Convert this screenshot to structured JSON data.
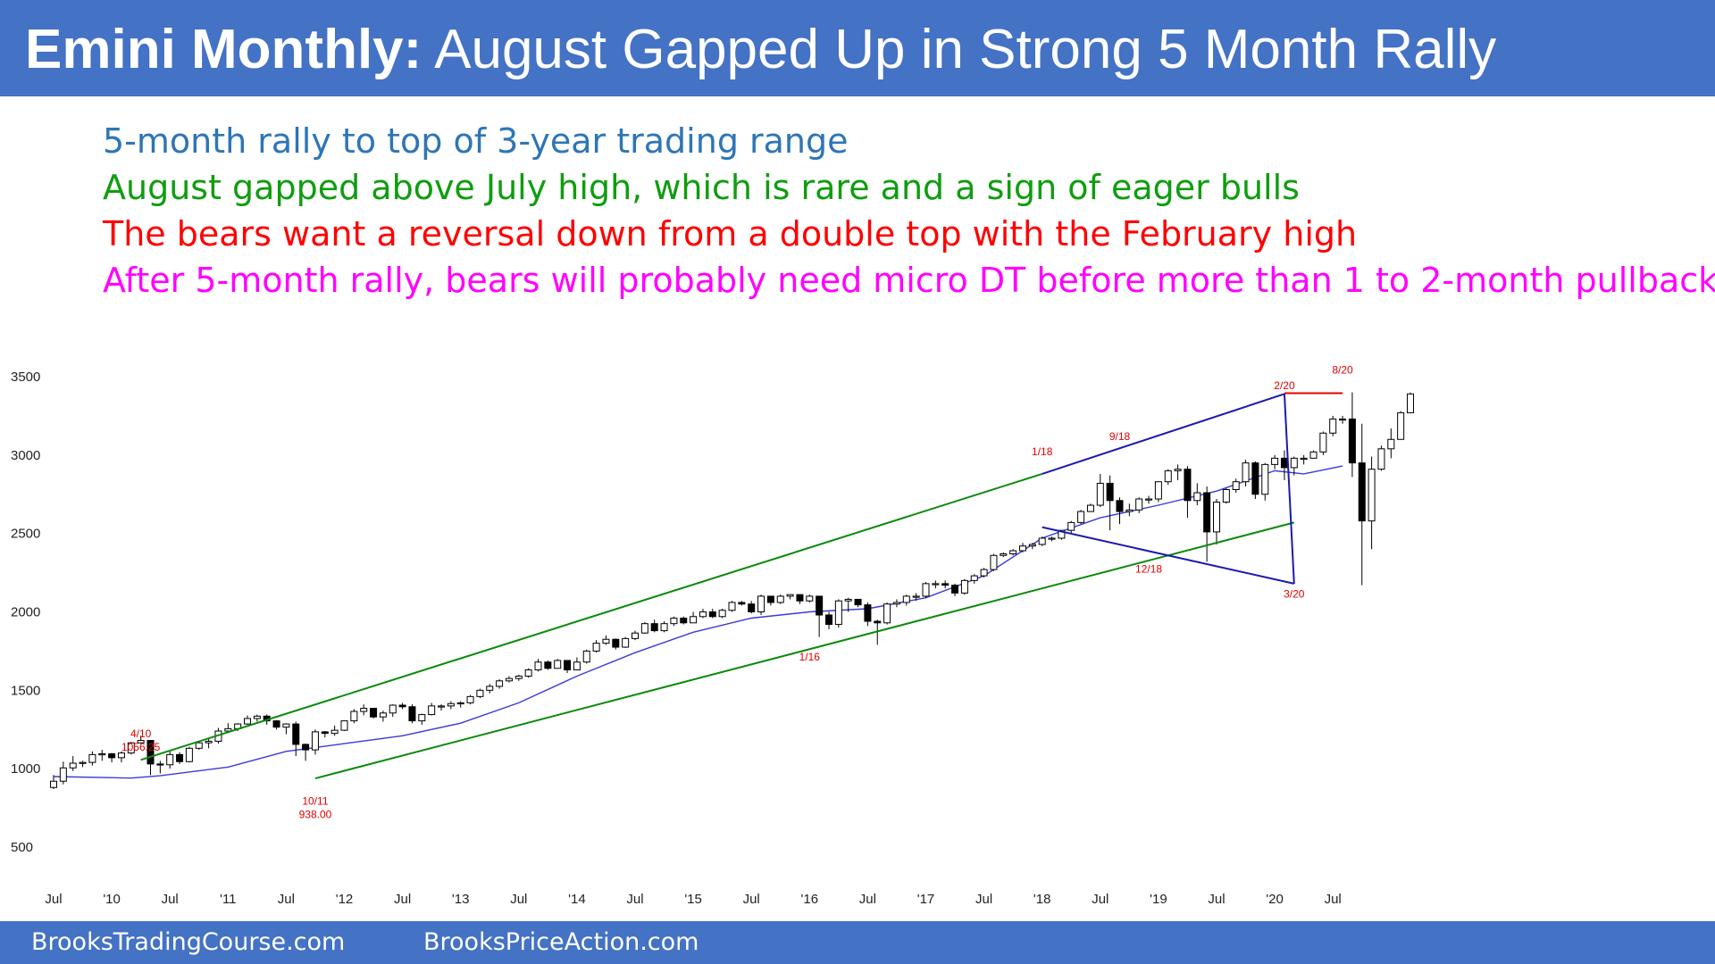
{
  "header": {
    "title_bold": "Emini Monthly:",
    "title_rest": "August Gapped Up in Strong 5 Month Rally"
  },
  "bullets": [
    {
      "text": "5-month rally to top of 3-year trading range",
      "color": "#2e75b6"
    },
    {
      "text": "August gapped above July high, which is rare and a sign of eager bulls",
      "color": "#0f9d0f"
    },
    {
      "text": "The bears want a reversal down from a double top with the February high",
      "color": "#ff0000"
    },
    {
      "text": "After 5-month rally, bears will probably need micro DT before more than 1 to 2-month pullback",
      "color": "#ff00ff"
    }
  ],
  "footer": {
    "left": "BrooksTradingCourse.com",
    "right": "BrooksPriceAction.com"
  },
  "colors": {
    "header_bg": "#4472c4",
    "bull_candle": "#ffffff",
    "bear_candle": "#000000",
    "moving_average": "#3a3ad8",
    "channel_green": "#0a8a0a",
    "triangle_blue": "#1a1ab0",
    "resistance_red": "#e00000",
    "annotation_red": "#e00000"
  },
  "chart_data": {
    "type": "candlestick",
    "instrument": "Emini",
    "timeframe": "Monthly",
    "start": "2009-07",
    "ylim": [
      500,
      3500
    ],
    "y_ticks": [
      3500,
      3000,
      2500,
      2000,
      1500,
      1000,
      500
    ],
    "x_ticks": [
      {
        "label": "Jul",
        "date": "2009-07"
      },
      {
        "label": "'10",
        "date": "2010-01"
      },
      {
        "label": "Jul",
        "date": "2010-07"
      },
      {
        "label": "'11",
        "date": "2011-01"
      },
      {
        "label": "Jul",
        "date": "2011-07"
      },
      {
        "label": "'12",
        "date": "2012-01"
      },
      {
        "label": "Jul",
        "date": "2012-07"
      },
      {
        "label": "'13",
        "date": "2013-01"
      },
      {
        "label": "Jul",
        "date": "2013-07"
      },
      {
        "label": "'14",
        "date": "2014-01"
      },
      {
        "label": "Jul",
        "date": "2014-07"
      },
      {
        "label": "'15",
        "date": "2015-01"
      },
      {
        "label": "Jul",
        "date": "2015-07"
      },
      {
        "label": "'16",
        "date": "2016-01"
      },
      {
        "label": "Jul",
        "date": "2016-07"
      },
      {
        "label": "'17",
        "date": "2017-01"
      },
      {
        "label": "Jul",
        "date": "2017-07"
      },
      {
        "label": "'18",
        "date": "2018-01"
      },
      {
        "label": "Jul",
        "date": "2018-07"
      },
      {
        "label": "'19",
        "date": "2019-01"
      },
      {
        "label": "Jul",
        "date": "2019-07"
      },
      {
        "label": "'20",
        "date": "2020-01"
      },
      {
        "label": "Jul",
        "date": "2020-07"
      }
    ],
    "closes": [
      920,
      1005,
      1035,
      1040,
      1090,
      1095,
      1070,
      1100,
      1165,
      1180,
      1030,
      1025,
      1090,
      1045,
      1130,
      1165,
      1175,
      1240,
      1255,
      1285,
      1320,
      1335,
      1305,
      1265,
      1285,
      1155,
      1120,
      1235,
      1225,
      1245,
      1305,
      1365,
      1385,
      1330,
      1355,
      1405,
      1395,
      1305,
      1345,
      1400,
      1400,
      1415,
      1420,
      1460,
      1500,
      1525,
      1560,
      1575,
      1590,
      1630,
      1680,
      1640,
      1690,
      1630,
      1680,
      1750,
      1800,
      1825,
      1775,
      1830,
      1865,
      1925,
      1880,
      1925,
      1960,
      1930,
      1970,
      2000,
      1970,
      2010,
      2060,
      2050,
      2000,
      2100,
      2060,
      2100,
      2110,
      2070,
      2100,
      1980,
      1920,
      2070,
      2080,
      2045,
      1940,
      1930,
      2050,
      2060,
      2100,
      2100,
      2180,
      2180,
      2170,
      2120,
      2200,
      2230,
      2270,
      2360,
      2370,
      2390,
      2420,
      2430,
      2470,
      2470,
      2520,
      2570,
      2640,
      2680,
      2820,
      2710,
      2640,
      2650,
      2720,
      2720,
      2830,
      2900,
      2910,
      2710,
      2760,
      2510,
      2700,
      2780,
      2830,
      2950,
      2750,
      2940,
      2980,
      2920,
      2980,
      2980,
      3020,
      3140,
      3230,
      3230,
      2950,
      2580,
      2910,
      3040,
      3100,
      3270,
      3390
    ],
    "highs": [
      960,
      1045,
      1080,
      1050,
      1110,
      1120,
      1100,
      1110,
      1170,
      1210,
      1100,
      1050,
      1110,
      1105,
      1140,
      1170,
      1190,
      1260,
      1290,
      1290,
      1340,
      1345,
      1345,
      1310,
      1290,
      1300,
      1160,
      1250,
      1240,
      1275,
      1305,
      1380,
      1410,
      1380,
      1370,
      1410,
      1420,
      1410,
      1350,
      1420,
      1410,
      1430,
      1430,
      1470,
      1510,
      1540,
      1570,
      1590,
      1600,
      1640,
      1700,
      1690,
      1700,
      1690,
      1710,
      1760,
      1820,
      1850,
      1830,
      1840,
      1880,
      1935,
      1950,
      1940,
      1970,
      1970,
      2000,
      2020,
      2020,
      2020,
      2070,
      2070,
      2070,
      2110,
      2100,
      2110,
      2110,
      2110,
      2110,
      2100,
      2000,
      2080,
      2090,
      2080,
      2060,
      1950,
      2060,
      2080,
      2110,
      2120,
      2190,
      2200,
      2200,
      2180,
      2210,
      2240,
      2280,
      2370,
      2380,
      2400,
      2440,
      2440,
      2480,
      2480,
      2520,
      2580,
      2650,
      2690,
      2880,
      2870,
      2730,
      2690,
      2730,
      2740,
      2830,
      2910,
      2940,
      2930,
      2820,
      2800,
      2720,
      2790,
      2850,
      2970,
      2960,
      2950,
      3000,
      3030,
      2990,
      3000,
      3030,
      3150,
      3250,
      3250,
      3400,
      3200,
      2990,
      3060,
      3170,
      3280,
      3400
    ],
    "lows": [
      870,
      900,
      985,
      1010,
      1020,
      1050,
      1040,
      1040,
      1090,
      1160,
      960,
      970,
      1000,
      1030,
      1040,
      1120,
      1130,
      1160,
      1240,
      1240,
      1280,
      1300,
      1280,
      1250,
      1220,
      1080,
      1050,
      1090,
      1200,
      1210,
      1240,
      1290,
      1340,
      1320,
      1300,
      1330,
      1380,
      1290,
      1280,
      1340,
      1370,
      1380,
      1390,
      1410,
      1450,
      1480,
      1510,
      1550,
      1560,
      1580,
      1620,
      1630,
      1640,
      1610,
      1630,
      1670,
      1740,
      1790,
      1760,
      1770,
      1820,
      1860,
      1870,
      1870,
      1910,
      1920,
      1930,
      1960,
      1960,
      1960,
      2000,
      2040,
      1990,
      1980,
      2040,
      2050,
      2080,
      2050,
      2060,
      1840,
      1890,
      1900,
      2000,
      2030,
      1910,
      1790,
      1920,
      2030,
      2040,
      2070,
      2090,
      2150,
      2150,
      2100,
      2110,
      2180,
      2220,
      2260,
      2350,
      2360,
      2380,
      2400,
      2420,
      2450,
      2460,
      2500,
      2560,
      2640,
      2670,
      2520,
      2560,
      2610,
      2630,
      2690,
      2700,
      2810,
      2840,
      2600,
      2680,
      2320,
      2430,
      2690,
      2760,
      2800,
      2720,
      2710,
      2910,
      2840,
      2870,
      2940,
      2980,
      3000,
      3120,
      3200,
      2860,
      2170,
      2400,
      2900,
      2980,
      3100,
      3270
    ],
    "moving_average": [
      {
        "date": "2009-07",
        "value": 950
      },
      {
        "date": "2010-03",
        "value": 940
      },
      {
        "date": "2010-06",
        "value": 955
      },
      {
        "date": "2011-01",
        "value": 1010
      },
      {
        "date": "2011-07",
        "value": 1110
      },
      {
        "date": "2012-01",
        "value": 1160
      },
      {
        "date": "2012-07",
        "value": 1210
      },
      {
        "date": "2013-01",
        "value": 1290
      },
      {
        "date": "2013-07",
        "value": 1420
      },
      {
        "date": "2014-01",
        "value": 1590
      },
      {
        "date": "2014-07",
        "value": 1740
      },
      {
        "date": "2015-01",
        "value": 1870
      },
      {
        "date": "2015-07",
        "value": 1960
      },
      {
        "date": "2016-01",
        "value": 2000
      },
      {
        "date": "2016-07",
        "value": 2020
      },
      {
        "date": "2017-01",
        "value": 2090
      },
      {
        "date": "2017-07",
        "value": 2230
      },
      {
        "date": "2018-01",
        "value": 2470
      },
      {
        "date": "2018-07",
        "value": 2600
      },
      {
        "date": "2019-01",
        "value": 2680
      },
      {
        "date": "2019-07",
        "value": 2770
      },
      {
        "date": "2020-01",
        "value": 2900
      },
      {
        "date": "2020-04",
        "value": 2880
      },
      {
        "date": "2020-08",
        "value": 2930
      }
    ],
    "trend_lines": [
      {
        "name": "green-channel-top-line",
        "role": "channel",
        "from": {
          "date": "2010-04",
          "value": 1056.25
        },
        "to": {
          "date": "2018-01",
          "value": 2880
        }
      },
      {
        "name": "green-channel-bottom-line",
        "role": "channel",
        "from": {
          "date": "2011-10",
          "value": 938
        },
        "to": {
          "date": "2020-03",
          "value": 2570
        }
      },
      {
        "name": "blue-wedge-top-line",
        "role": "triangle",
        "from": {
          "date": "2018-01",
          "value": 2880
        },
        "to": {
          "date": "2020-02",
          "value": 3390
        }
      },
      {
        "name": "blue-wedge-bottom-line",
        "role": "triangle",
        "from": {
          "date": "2018-01",
          "value": 2540
        },
        "to": {
          "date": "2020-03",
          "value": 2180
        }
      },
      {
        "name": "blue-wedge-right-side",
        "role": "triangle",
        "from": {
          "date": "2020-02",
          "value": 3390
        },
        "to": {
          "date": "2020-03",
          "value": 2180
        }
      },
      {
        "name": "red-double-top-line",
        "role": "resistance",
        "from": {
          "date": "2020-02",
          "value": 3395
        },
        "to": {
          "date": "2020-08",
          "value": 3395
        }
      }
    ],
    "annotations": [
      {
        "lines": [
          "4/10",
          "1056.25"
        ],
        "date": "2010-04",
        "value": 1200
      },
      {
        "lines": [
          "10/11",
          "938.00"
        ],
        "date": "2011-10",
        "value": 770
      },
      {
        "lines": [
          "1/16"
        ],
        "date": "2016-01",
        "value": 1690
      },
      {
        "lines": [
          "1/18"
        ],
        "date": "2018-01",
        "value": 3000
      },
      {
        "lines": [
          "9/18"
        ],
        "date": "2018-09",
        "value": 3095
      },
      {
        "lines": [
          "12/18"
        ],
        "date": "2018-12",
        "value": 2250
      },
      {
        "lines": [
          "2/20"
        ],
        "date": "2020-02",
        "value": 3420
      },
      {
        "lines": [
          "3/20"
        ],
        "date": "2020-03",
        "value": 2090
      },
      {
        "lines": [
          "8/20"
        ],
        "date": "2020-08",
        "value": 3520
      }
    ]
  }
}
